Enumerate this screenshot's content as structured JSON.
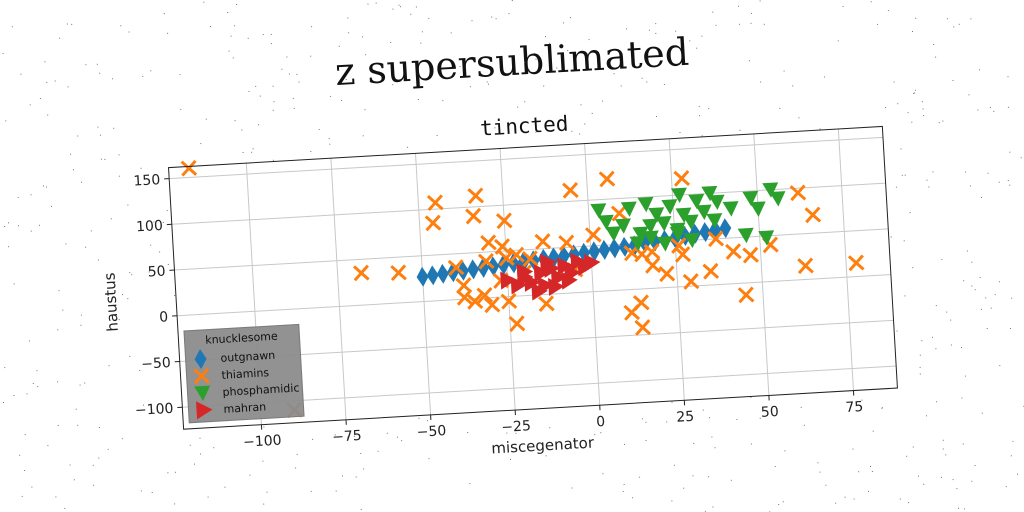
{
  "suptitle": "z supersublimated",
  "chart_data": {
    "type": "scatter",
    "title": "tincted",
    "xlabel": "miscegenator",
    "ylabel": "haustus",
    "xlim": [
      -123,
      88
    ],
    "ylim": [
      -124,
      162
    ],
    "xticks": [
      -100,
      -75,
      -50,
      -25,
      0,
      25,
      50,
      75
    ],
    "yticks": [
      -100,
      -50,
      0,
      50,
      100,
      150
    ],
    "grid": true,
    "legend": {
      "title": "knucklesome",
      "placement": "lower-left"
    },
    "series": [
      {
        "name": "outgnawn",
        "marker": "diamond",
        "color": "#1f77b4",
        "points": [
          [
            -50,
            27
          ],
          [
            -47,
            28
          ],
          [
            -44,
            29
          ],
          [
            -41,
            30
          ],
          [
            -38,
            31
          ],
          [
            -35,
            32
          ],
          [
            -32,
            33
          ],
          [
            -29,
            34
          ],
          [
            -26,
            35
          ],
          [
            -23,
            36
          ],
          [
            -20,
            37
          ],
          [
            -17,
            38
          ],
          [
            -14,
            39
          ],
          [
            -11,
            40
          ],
          [
            -8,
            41
          ],
          [
            -5,
            42
          ],
          [
            -2,
            43
          ],
          [
            1,
            44
          ],
          [
            4,
            45
          ],
          [
            7,
            46
          ],
          [
            10,
            47
          ],
          [
            13,
            48
          ],
          [
            16,
            50
          ],
          [
            19,
            51
          ],
          [
            22,
            52
          ],
          [
            25,
            53
          ],
          [
            28,
            55
          ],
          [
            31,
            57
          ],
          [
            34,
            58
          ],
          [
            37,
            60
          ],
          [
            40,
            61
          ]
        ]
      },
      {
        "name": "thiamins",
        "marker": "x",
        "color": "#ff7f0e",
        "points": [
          [
            -117,
            160
          ],
          [
            -90,
            -110
          ],
          [
            -68,
            35
          ],
          [
            -57,
            33
          ],
          [
            -45,
            107
          ],
          [
            -46,
            85
          ],
          [
            -33,
            112
          ],
          [
            -34,
            90
          ],
          [
            -25,
            83
          ],
          [
            -30,
            60
          ],
          [
            -26,
            55
          ],
          [
            -31,
            40
          ],
          [
            -40,
            35
          ],
          [
            -38,
            15
          ],
          [
            -35,
            -3
          ],
          [
            -38,
            2
          ],
          [
            -32,
            3
          ],
          [
            -30,
            -8
          ],
          [
            -27,
            18
          ],
          [
            -25,
            42
          ],
          [
            -22,
            45
          ],
          [
            -23,
            -30
          ],
          [
            -25,
            -5
          ],
          [
            -20,
            25
          ],
          [
            -18,
            40
          ],
          [
            -14,
            -10
          ],
          [
            -14,
            58
          ],
          [
            -5,
            25
          ],
          [
            -7,
            55
          ],
          [
            -5,
            112
          ],
          [
            1,
            62
          ],
          [
            6,
            122
          ],
          [
            9,
            84
          ],
          [
            12,
            40
          ],
          [
            15,
            38
          ],
          [
            18,
            40
          ],
          [
            18,
            25
          ],
          [
            11,
            -25
          ],
          [
            14,
            -15
          ],
          [
            14,
            -42
          ],
          [
            22,
            15
          ],
          [
            26,
            45
          ],
          [
            27,
            35
          ],
          [
            28,
            118
          ],
          [
            29,
            5
          ],
          [
            35,
            15
          ],
          [
            37,
            50
          ],
          [
            42,
            35
          ],
          [
            45,
            -13
          ],
          [
            47,
            30
          ],
          [
            53,
            40
          ],
          [
            62,
            95
          ],
          [
            63,
            15
          ],
          [
            66,
            70
          ],
          [
            78,
            15
          ]
        ]
      },
      {
        "name": "phosphamidic",
        "marker": "triangle-down",
        "color": "#2ca02c",
        "points": [
          [
            3,
            88
          ],
          [
            5,
            75
          ],
          [
            7,
            62
          ],
          [
            10,
            70
          ],
          [
            12,
            88
          ],
          [
            15,
            60
          ],
          [
            17,
            92
          ],
          [
            18,
            68
          ],
          [
            20,
            80
          ],
          [
            22,
            70
          ],
          [
            24,
            88
          ],
          [
            26,
            62
          ],
          [
            27,
            100
          ],
          [
            28,
            78
          ],
          [
            30,
            70
          ],
          [
            32,
            92
          ],
          [
            34,
            80
          ],
          [
            36,
            100
          ],
          [
            37,
            70
          ],
          [
            38,
            90
          ],
          [
            42,
            82
          ],
          [
            46,
            52
          ],
          [
            48,
            92
          ],
          [
            50,
            80
          ],
          [
            52,
            48
          ],
          [
            54,
            100
          ],
          [
            56,
            90
          ],
          [
            14,
            50
          ],
          [
            18,
            55
          ],
          [
            22,
            48
          ],
          [
            26,
            58
          ],
          [
            30,
            50
          ]
        ]
      },
      {
        "name": "mahran",
        "marker": "triangle-right",
        "color": "#d62728",
        "points": [
          [
            -25,
            18
          ],
          [
            -22,
            12
          ],
          [
            -20,
            20
          ],
          [
            -18,
            14
          ],
          [
            -15,
            24
          ],
          [
            -14,
            10
          ],
          [
            -12,
            28
          ],
          [
            -10,
            18
          ],
          [
            -8,
            30
          ],
          [
            -6,
            22
          ],
          [
            -4,
            34
          ],
          [
            -2,
            28
          ],
          [
            0,
            32
          ],
          [
            -16,
            4
          ],
          [
            -11,
            8
          ],
          [
            -20,
            26
          ],
          [
            -7,
            14
          ],
          [
            -13,
            35
          ]
        ]
      }
    ]
  }
}
